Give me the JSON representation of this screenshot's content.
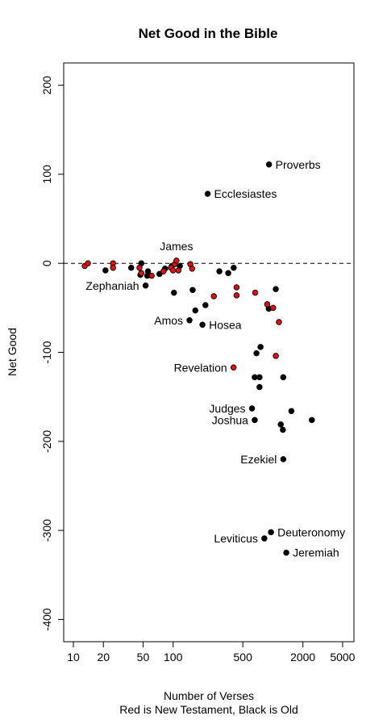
{
  "chart_data": {
    "type": "scatter",
    "title": "Net Good in the Bible",
    "xlabel": "Number of Verses",
    "xlabel2": "Red is New Testament, Black is Old",
    "ylabel": "Net Good",
    "x_scale": "log",
    "xlim": [
      8,
      6500
    ],
    "ylim": [
      -425,
      225
    ],
    "x_ticks": [
      10,
      20,
      50,
      100,
      500,
      2000,
      5000
    ],
    "x_tick_labels": [
      "10",
      "20",
      "50",
      "100",
      "500",
      "2000",
      "5000"
    ],
    "y_ticks": [
      200,
      100,
      0,
      -100,
      -200,
      -300,
      -400
    ],
    "y_tick_labels": [
      "200",
      "100",
      "0",
      "-100",
      "-200",
      "-300",
      "-400"
    ],
    "reference_line": {
      "y": 0,
      "style": "dashed"
    },
    "colors": {
      "old_testament": "#000000",
      "new_testament": "#e01010"
    },
    "series": [
      {
        "testament": "old",
        "color": "#000000",
        "points": [
          {
            "x": 915,
            "y": 111,
            "label": "Proverbs"
          },
          {
            "x": 222,
            "y": 78,
            "label": "Ecclesiastes"
          },
          {
            "x": 21,
            "y": -8
          },
          {
            "x": 38,
            "y": -5
          },
          {
            "x": 48,
            "y": 0
          },
          {
            "x": 47,
            "y": -13
          },
          {
            "x": 53,
            "y": -25,
            "label": "Zephaniah"
          },
          {
            "x": 55,
            "y": -14
          },
          {
            "x": 56,
            "y": -9
          },
          {
            "x": 73,
            "y": -12
          },
          {
            "x": 83,
            "y": -6
          },
          {
            "x": 97,
            "y": -3
          },
          {
            "x": 102,
            "y": -33
          },
          {
            "x": 117,
            "y": -3
          },
          {
            "x": 146,
            "y": -64,
            "label": "Amos"
          },
          {
            "x": 157,
            "y": -30
          },
          {
            "x": 167,
            "y": -53
          },
          {
            "x": 197,
            "y": -69,
            "label": "Hosea"
          },
          {
            "x": 211,
            "y": -47
          },
          {
            "x": 291,
            "y": -9
          },
          {
            "x": 357,
            "y": -11
          },
          {
            "x": 405,
            "y": -5
          },
          {
            "x": 618,
            "y": -163,
            "label": "Judges"
          },
          {
            "x": 658,
            "y": -176,
            "label": "Joshua"
          },
          {
            "x": 658,
            "y": -128
          },
          {
            "x": 685,
            "y": -101
          },
          {
            "x": 735,
            "y": -128
          },
          {
            "x": 735,
            "y": -139
          },
          {
            "x": 752,
            "y": -94
          },
          {
            "x": 822,
            "y": -309,
            "label": "Leviticus"
          },
          {
            "x": 910,
            "y": -51
          },
          {
            "x": 958,
            "y": -302,
            "label": "Deuteronomy"
          },
          {
            "x": 1070,
            "y": -29
          },
          {
            "x": 1200,
            "y": -181
          },
          {
            "x": 1260,
            "y": -187
          },
          {
            "x": 1271,
            "y": -128
          },
          {
            "x": 1273,
            "y": -220,
            "label": "Ezekiel"
          },
          {
            "x": 1364,
            "y": -325,
            "label": "Jeremiah"
          },
          {
            "x": 1533,
            "y": -166
          },
          {
            "x": 2461,
            "y": -176
          }
        ]
      },
      {
        "testament": "new",
        "color": "#e01010",
        "points": [
          {
            "x": 13,
            "y": -3
          },
          {
            "x": 14,
            "y": 0
          },
          {
            "x": 25,
            "y": 0
          },
          {
            "x": 25,
            "y": -5
          },
          {
            "x": 46,
            "y": -5
          },
          {
            "x": 48,
            "y": -11
          },
          {
            "x": 61,
            "y": -14
          },
          {
            "x": 80,
            "y": -9
          },
          {
            "x": 95,
            "y": -5
          },
          {
            "x": 100,
            "y": -8
          },
          {
            "x": 104,
            "y": -1
          },
          {
            "x": 108,
            "y": 3,
            "label": "James"
          },
          {
            "x": 113,
            "y": -8
          },
          {
            "x": 149,
            "y": -1
          },
          {
            "x": 155,
            "y": -6
          },
          {
            "x": 256,
            "y": -37
          },
          {
            "x": 404,
            "y": -117,
            "label": "Revelation"
          },
          {
            "x": 433,
            "y": -27
          },
          {
            "x": 433,
            "y": -36
          },
          {
            "x": 666,
            "y": -33
          },
          {
            "x": 878,
            "y": -46
          },
          {
            "x": 1007,
            "y": -50
          },
          {
            "x": 1071,
            "y": -104
          },
          {
            "x": 1151,
            "y": -66
          }
        ]
      }
    ],
    "annotations": [
      {
        "text": "Proverbs",
        "x": 915,
        "y": 111,
        "pos": "right"
      },
      {
        "text": "Ecclesiastes",
        "x": 222,
        "y": 78,
        "pos": "right"
      },
      {
        "text": "James",
        "x": 108,
        "y": 3,
        "pos": "above"
      },
      {
        "text": "Zephaniah",
        "x": 53,
        "y": -25,
        "pos": "left"
      },
      {
        "text": "Amos",
        "x": 146,
        "y": -64,
        "pos": "left"
      },
      {
        "text": "Hosea",
        "x": 197,
        "y": -69,
        "pos": "right"
      },
      {
        "text": "Revelation",
        "x": 404,
        "y": -117,
        "pos": "left"
      },
      {
        "text": "Judges",
        "x": 618,
        "y": -163,
        "pos": "left"
      },
      {
        "text": "Joshua",
        "x": 658,
        "y": -176,
        "pos": "left"
      },
      {
        "text": "Ezekiel",
        "x": 1273,
        "y": -220,
        "pos": "left"
      },
      {
        "text": "Deuteronomy",
        "x": 958,
        "y": -302,
        "pos": "right"
      },
      {
        "text": "Leviticus",
        "x": 822,
        "y": -309,
        "pos": "left"
      },
      {
        "text": "Jeremiah",
        "x": 1364,
        "y": -325,
        "pos": "right"
      }
    ]
  }
}
